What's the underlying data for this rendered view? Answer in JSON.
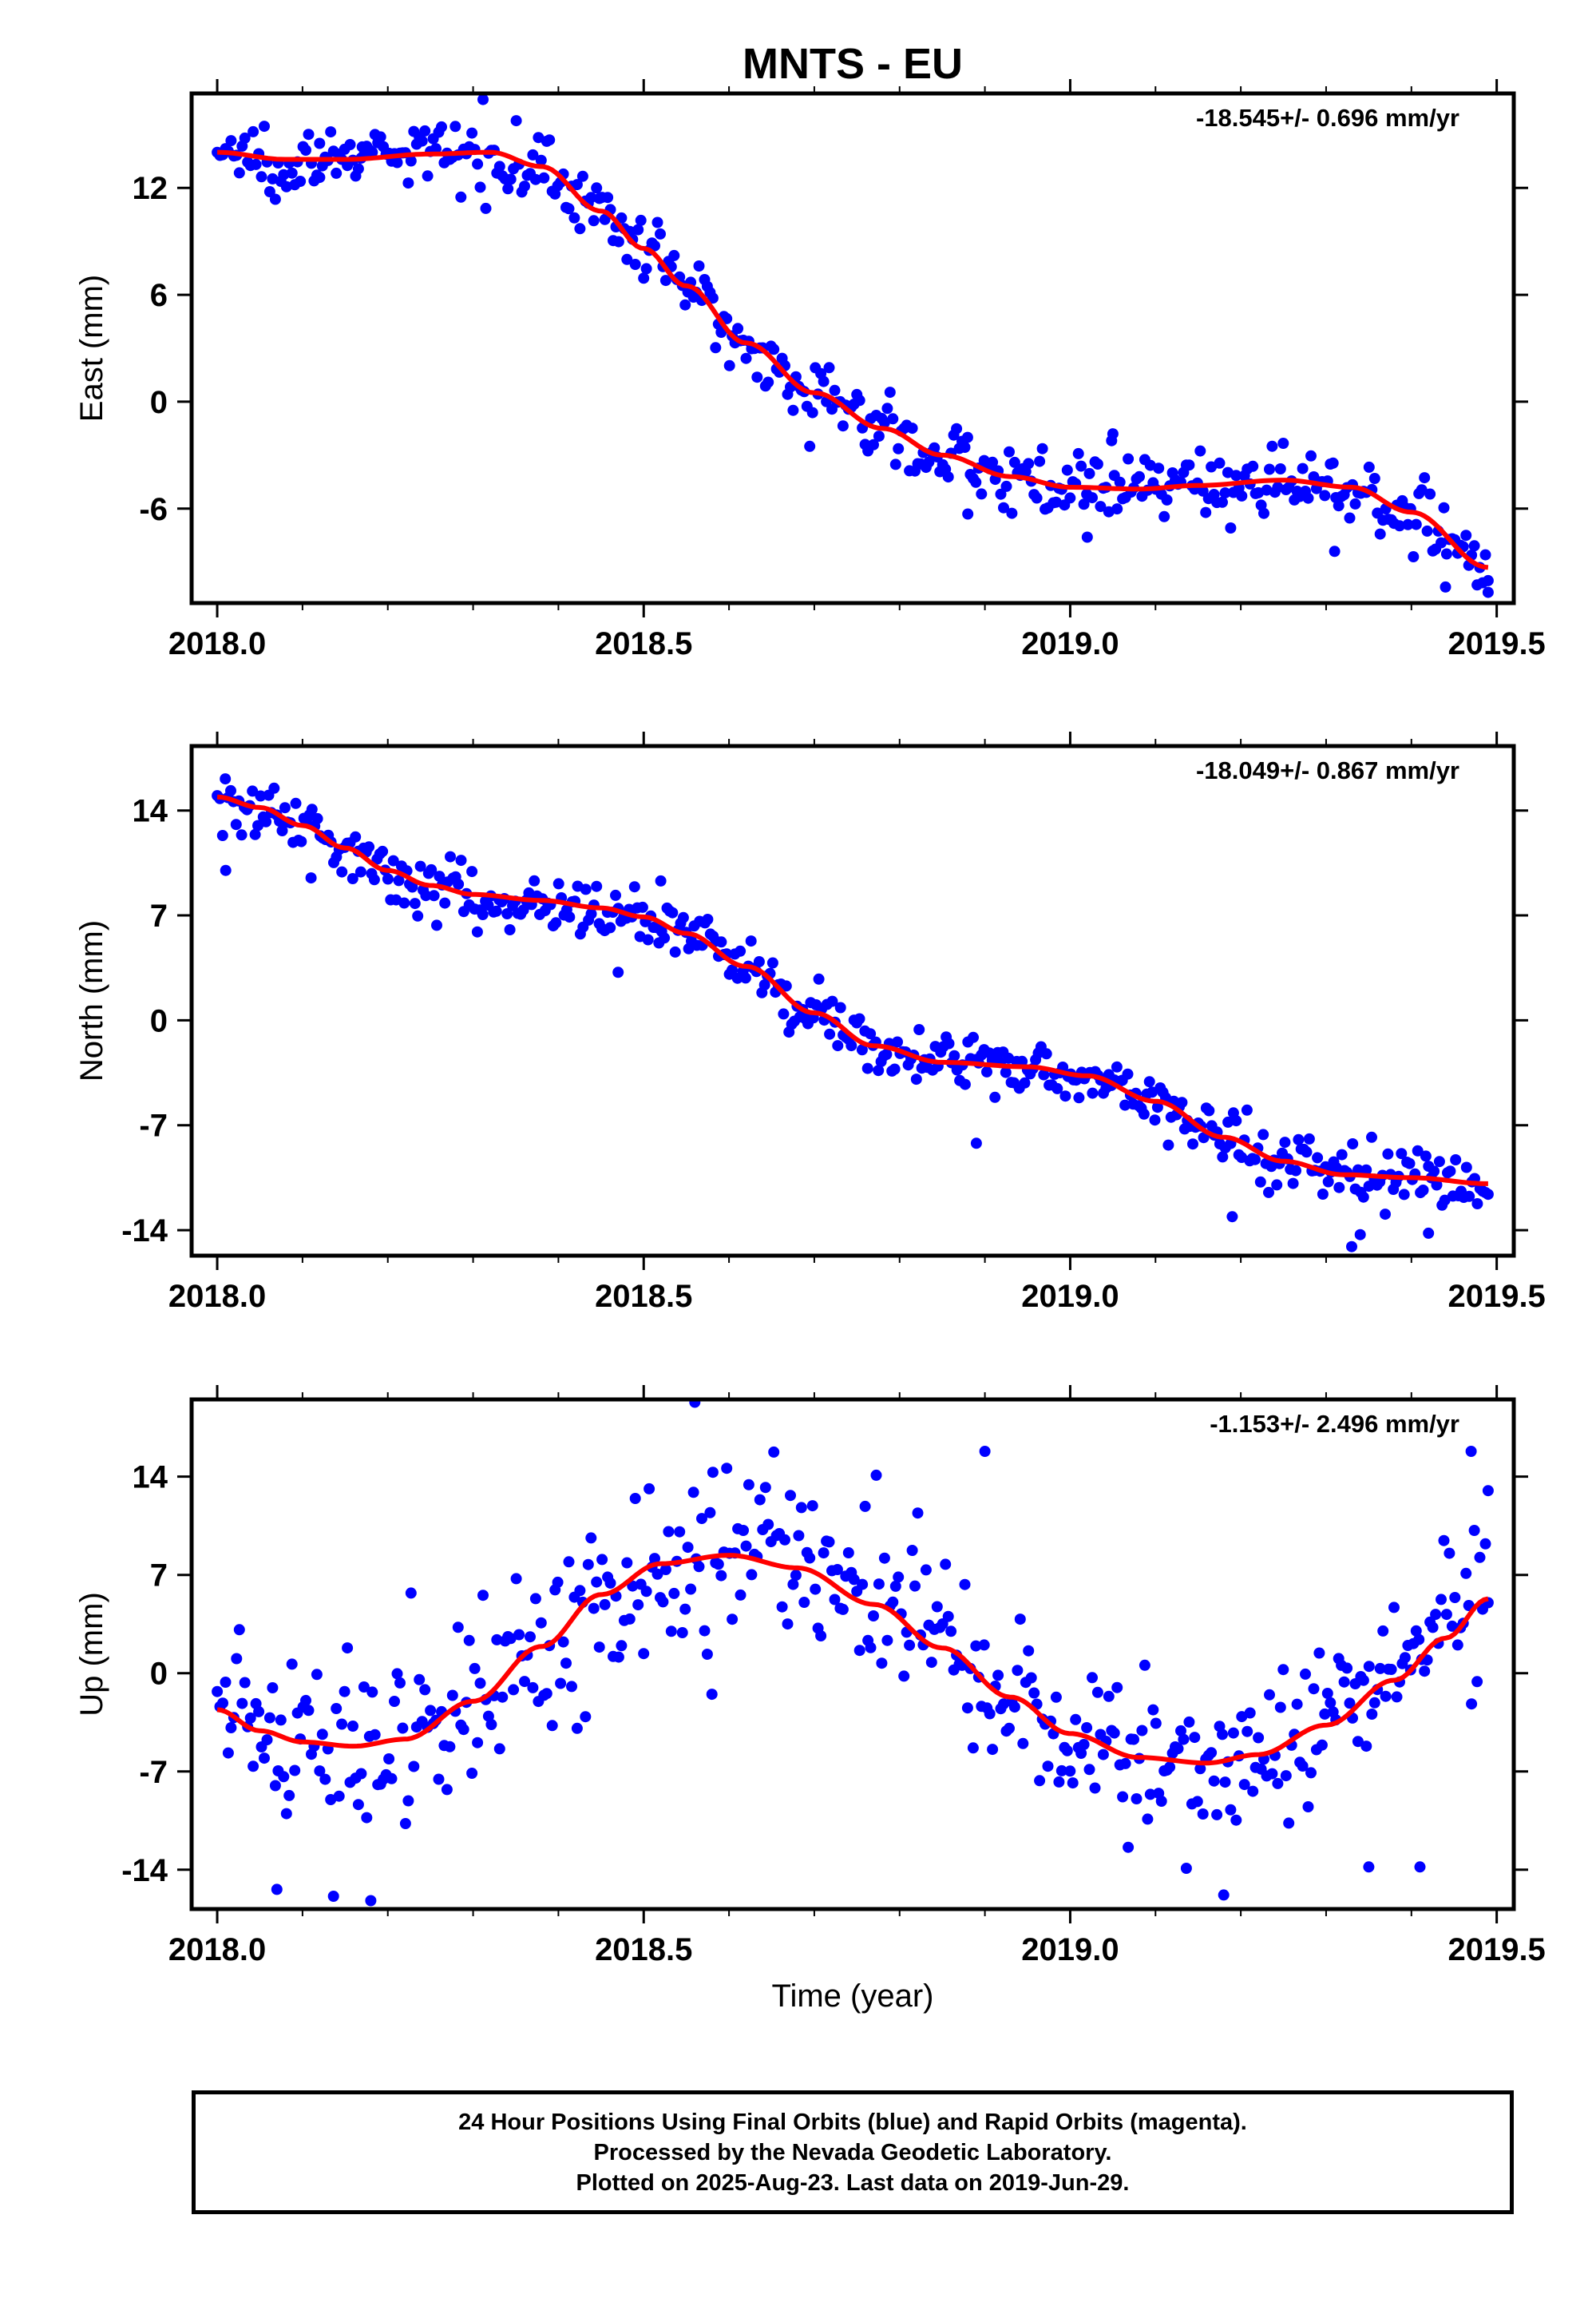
{
  "title": "MNTS - EU",
  "xlabel": "Time (year)",
  "colors": {
    "points": "#0000ff",
    "fit": "#ff0000",
    "frame": "#000000"
  },
  "chart_data": [
    {
      "type": "scatter",
      "component": "east",
      "ylabel": "East (mm)",
      "rate_label": "-18.545+/- 0.696 mm/yr",
      "xlim": [
        2017.97,
        2019.52
      ],
      "ylim": [
        -11.3,
        17.3
      ],
      "xticks": [
        2018.0,
        2018.5,
        2019.0,
        2019.5
      ],
      "xtick_labels": [
        "2018.0",
        "2018.5",
        "2019.0",
        "2019.5"
      ],
      "yticks": [
        12,
        6,
        0,
        -6
      ],
      "ytick_labels": [
        "12",
        "6",
        "0",
        "-6"
      ],
      "fit_anchors": [
        [
          2018.0,
          14.0
        ],
        [
          2018.08,
          13.6
        ],
        [
          2018.15,
          13.6
        ],
        [
          2018.25,
          13.9
        ],
        [
          2018.32,
          14.0
        ],
        [
          2018.38,
          13.2
        ],
        [
          2018.45,
          10.7
        ],
        [
          2018.5,
          8.6
        ],
        [
          2018.55,
          6.5
        ],
        [
          2018.62,
          3.3
        ],
        [
          2018.7,
          0.5
        ],
        [
          2018.78,
          -1.5
        ],
        [
          2018.85,
          -3.0
        ],
        [
          2018.93,
          -4.2
        ],
        [
          2019.0,
          -4.8
        ],
        [
          2019.08,
          -4.9
        ],
        [
          2019.15,
          -4.7
        ],
        [
          2019.25,
          -4.4
        ],
        [
          2019.33,
          -4.8
        ],
        [
          2019.4,
          -6.2
        ],
        [
          2019.49,
          -9.3
        ]
      ],
      "noise_sd": 0.9,
      "n_points": 460,
      "outliers": [
        [
          2018.17,
          14.3
        ],
        [
          2018.12,
          14.5
        ],
        [
          2019.02,
          -7.6
        ],
        [
          2019.31,
          -8.4
        ],
        [
          2019.05,
          -1.8
        ],
        [
          2018.88,
          -6.3
        ],
        [
          2019.49,
          -10.7
        ],
        [
          2019.44,
          -10.4
        ]
      ]
    },
    {
      "type": "scatter",
      "component": "north",
      "ylabel": "North (mm)",
      "rate_label": "-18.049+/- 0.867 mm/yr",
      "xlim": [
        2017.97,
        2019.52
      ],
      "ylim": [
        -15.7,
        18.3
      ],
      "xticks": [
        2018.0,
        2018.5,
        2019.0,
        2019.5
      ],
      "xtick_labels": [
        "2018.0",
        "2018.5",
        "2019.0",
        "2019.5"
      ],
      "yticks": [
        14,
        7,
        0,
        -7,
        -14
      ],
      "ytick_labels": [
        "14",
        "7",
        "0",
        "-7",
        "-14"
      ],
      "fit_anchors": [
        [
          2018.0,
          14.9
        ],
        [
          2018.05,
          14.2
        ],
        [
          2018.1,
          13.0
        ],
        [
          2018.15,
          11.5
        ],
        [
          2018.2,
          10.0
        ],
        [
          2018.25,
          9.0
        ],
        [
          2018.3,
          8.4
        ],
        [
          2018.38,
          8.0
        ],
        [
          2018.45,
          7.5
        ],
        [
          2018.5,
          6.9
        ],
        [
          2018.55,
          5.8
        ],
        [
          2018.62,
          3.6
        ],
        [
          2018.7,
          0.5
        ],
        [
          2018.77,
          -1.7
        ],
        [
          2018.85,
          -2.8
        ],
        [
          2018.95,
          -3.1
        ],
        [
          2019.02,
          -3.7
        ],
        [
          2019.1,
          -5.4
        ],
        [
          2019.18,
          -7.8
        ],
        [
          2019.25,
          -9.4
        ],
        [
          2019.32,
          -10.3
        ],
        [
          2019.4,
          -10.5
        ],
        [
          2019.49,
          -10.9
        ]
      ],
      "noise_sd": 0.95,
      "n_points": 470,
      "outliers": [
        [
          2018.01,
          10.0
        ],
        [
          2018.11,
          9.5
        ],
        [
          2018.89,
          -8.2
        ],
        [
          2019.33,
          -15.1
        ],
        [
          2019.34,
          -14.3
        ],
        [
          2019.42,
          -14.2
        ],
        [
          2019.19,
          -13.1
        ],
        [
          2018.47,
          3.2
        ],
        [
          2018.52,
          9.3
        ]
      ]
    },
    {
      "type": "scatter",
      "component": "up",
      "ylabel": "Up (mm)",
      "rate_label": "-1.153+/- 2.496 mm/yr",
      "xlim": [
        2017.97,
        2019.52
      ],
      "ylim": [
        -16.8,
        19.5
      ],
      "xticks": [
        2018.0,
        2018.5,
        2019.0,
        2019.5
      ],
      "xtick_labels": [
        "2018.0",
        "2018.5",
        "2019.0",
        "2019.5"
      ],
      "yticks": [
        14,
        7,
        0,
        -7,
        -14
      ],
      "ytick_labels": [
        "14",
        "7",
        "0",
        "-7",
        "-14"
      ],
      "fit_anchors": [
        [
          2018.0,
          -2.6
        ],
        [
          2018.05,
          -4.1
        ],
        [
          2018.1,
          -4.9
        ],
        [
          2018.16,
          -5.2
        ],
        [
          2018.22,
          -4.7
        ],
        [
          2018.3,
          -2.0
        ],
        [
          2018.38,
          1.9
        ],
        [
          2018.45,
          5.6
        ],
        [
          2018.52,
          7.8
        ],
        [
          2018.6,
          8.4
        ],
        [
          2018.68,
          7.5
        ],
        [
          2018.77,
          4.9
        ],
        [
          2018.85,
          1.8
        ],
        [
          2018.93,
          -1.7
        ],
        [
          2019.0,
          -4.3
        ],
        [
          2019.08,
          -6.0
        ],
        [
          2019.16,
          -6.4
        ],
        [
          2019.22,
          -5.8
        ],
        [
          2019.3,
          -3.7
        ],
        [
          2019.38,
          -0.5
        ],
        [
          2019.44,
          2.5
        ],
        [
          2019.49,
          5.3
        ]
      ],
      "noise_sd": 3.0,
      "n_points": 460,
      "outliers": [
        [
          2018.56,
          19.3
        ],
        [
          2018.9,
          15.8
        ],
        [
          2019.47,
          15.8
        ],
        [
          2019.49,
          13.0
        ],
        [
          2018.18,
          -16.2
        ],
        [
          2019.18,
          -15.8
        ],
        [
          2019.35,
          -13.8
        ],
        [
          2019.41,
          -13.8
        ],
        [
          2018.07,
          -15.4
        ],
        [
          2018.58,
          -1.5
        ]
      ]
    }
  ],
  "footer": {
    "line1": "24 Hour Positions Using Final Orbits (blue) and Rapid Orbits (magenta).",
    "line2": "Processed by the Nevada Geodetic Laboratory.",
    "line3": "Plotted on 2025-Aug-23. Last data on 2019-Jun-29."
  }
}
